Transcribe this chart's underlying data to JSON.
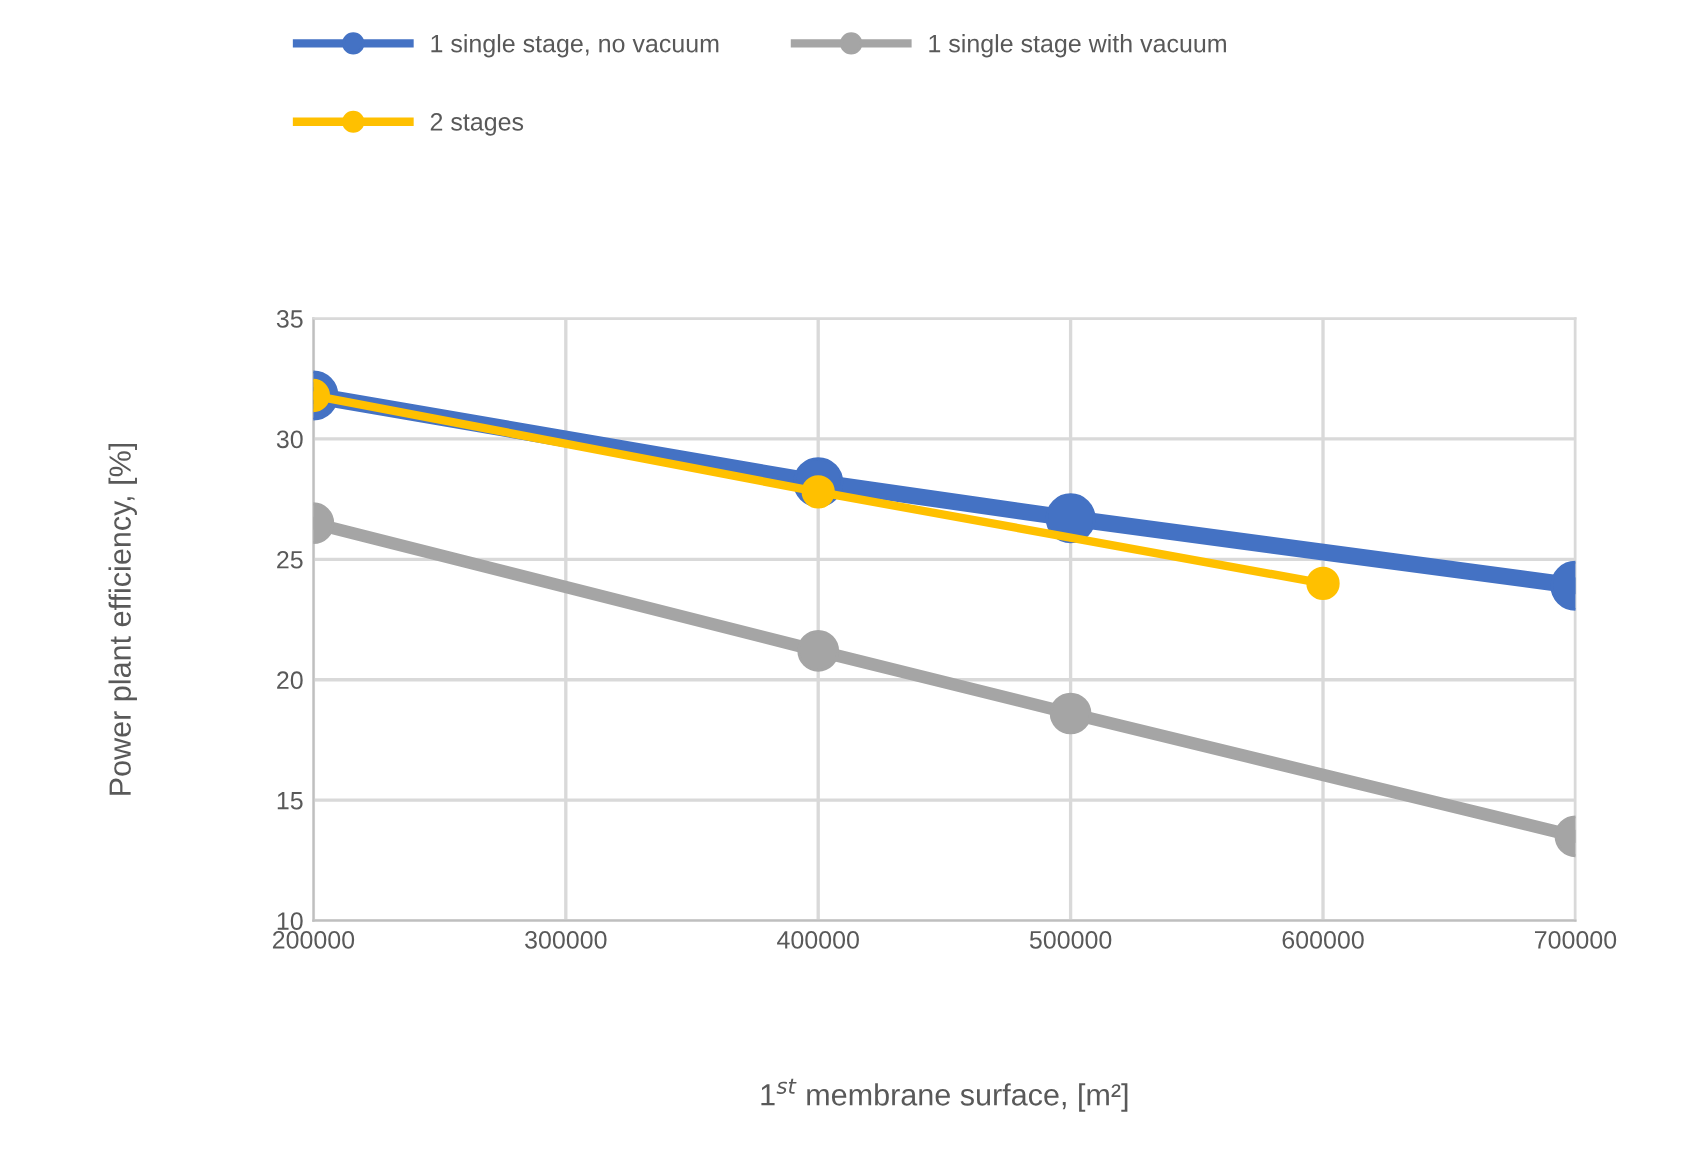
{
  "chart_data": {
    "type": "line",
    "xlabel": "1$^{st}$ membrane surface, [m²]",
    "ylabel": "Power plant efficiency, [%]",
    "series": [
      {
        "name": "1 single stage, no vacuum",
        "color": "#4472c4",
        "x": [
          200000,
          400000,
          500000,
          700000
        ],
        "values": [
          31.8,
          28.2,
          26.7,
          23.9
        ]
      },
      {
        "name": "1 single stage with vacuum",
        "color": "#a5a5a5",
        "x": [
          200000,
          400000,
          500000,
          700000
        ],
        "values": [
          26.5,
          21.2,
          18.6,
          13.5
        ]
      },
      {
        "name": "2 stages",
        "color": "#ffc000",
        "x": [
          200000,
          400000,
          600000
        ],
        "values": [
          31.8,
          27.8,
          24.0
        ]
      }
    ],
    "xlim": [
      200000,
      700000
    ],
    "xticks": [
      200000,
      300000,
      400000,
      500000,
      600000,
      700000
    ],
    "ylim": [
      10,
      35
    ],
    "yticks": [
      10,
      15,
      20,
      25,
      30,
      35
    ],
    "grid": true,
    "legend": "top",
    "marker": "circle",
    "line_style": "solid"
  }
}
